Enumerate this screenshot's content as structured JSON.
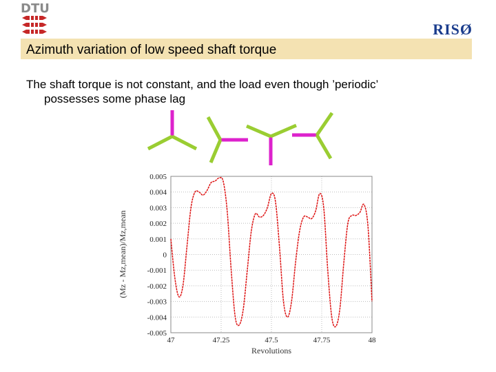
{
  "header": {
    "left_logo_text": "DTU",
    "right_logo_text": "RISØ"
  },
  "slide": {
    "title": "Azimuth variation of low speed shaft torque",
    "body_line1": "The shaft torque is not constant, and the load even though ’periodic’",
    "body_line2": "possesses some phase lag"
  },
  "colors": {
    "title_bar": "#f4e2b2",
    "blade_green": "#9acd32",
    "blade_magenta": "#dd22cc",
    "curve_red": "#dd1111",
    "riso_blue": "#1a3c8c"
  },
  "chart_data": {
    "type": "line",
    "xlabel": "Revolutions",
    "ylabel": "(Mz - Mz,mean)/Mz,mean",
    "xlim": [
      47,
      48
    ],
    "ylim": [
      -0.005,
      0.005
    ],
    "xticks": [
      "47",
      "47.25",
      "47.5",
      "47.75",
      "48"
    ],
    "yticks": [
      "0.005",
      "0.004",
      "0.003",
      "0.002",
      "0.001",
      "0",
      "-0.001",
      "-0.002",
      "-0.003",
      "-0.004",
      "-0.005"
    ],
    "grid": true,
    "series": [
      {
        "x": [
          47.0,
          47.02,
          47.04,
          47.06,
          47.08,
          47.1,
          47.12,
          47.14,
          47.16,
          47.18,
          47.2,
          47.22,
          47.24,
          47.26,
          47.28,
          47.3,
          47.32,
          47.34,
          47.36,
          47.38,
          47.4,
          47.42,
          47.44,
          47.46,
          47.48,
          47.5,
          47.52,
          47.54,
          47.56,
          47.58,
          47.6,
          47.62,
          47.64,
          47.66,
          47.68,
          47.7,
          47.72,
          47.74,
          47.76,
          47.78,
          47.8,
          47.82,
          47.84,
          47.86,
          47.88,
          47.9,
          47.92,
          47.94,
          47.96,
          47.98,
          48.0
        ],
        "y": [
          0.001,
          -0.0015,
          -0.0027,
          -0.002,
          0.0005,
          0.003,
          0.004,
          0.004,
          0.0038,
          0.0041,
          0.0046,
          0.0047,
          0.0049,
          0.0047,
          0.0028,
          -0.001,
          -0.004,
          -0.0045,
          -0.0035,
          -0.001,
          0.0015,
          0.0026,
          0.0024,
          0.0025,
          0.003,
          0.0039,
          0.0034,
          0.0005,
          -0.003,
          -0.004,
          -0.003,
          -0.0005,
          0.0015,
          0.0024,
          0.0024,
          0.0023,
          0.0028,
          0.0039,
          0.003,
          -0.001,
          -0.004,
          -0.0046,
          -0.0035,
          -0.0005,
          0.002,
          0.0025,
          0.0025,
          0.0027,
          0.0032,
          0.0018,
          -0.003
        ]
      }
    ]
  }
}
